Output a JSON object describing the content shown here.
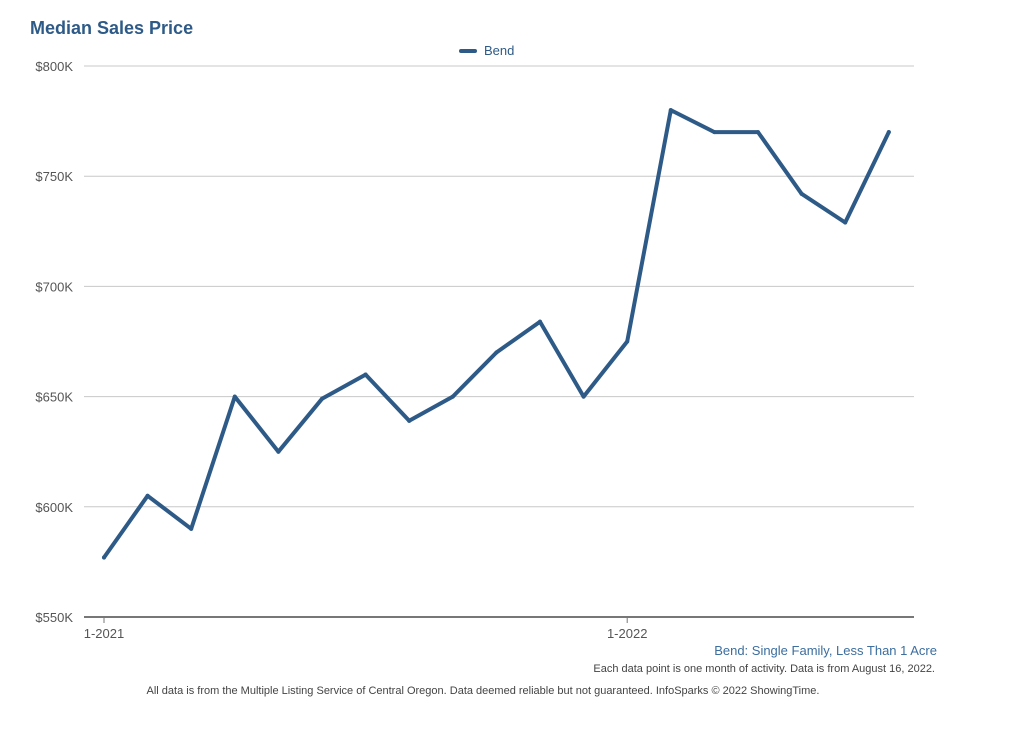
{
  "chart_data": {
    "type": "line",
    "title": "Median Sales Price",
    "x": [
      "1-2021",
      "2-2021",
      "3-2021",
      "4-2021",
      "5-2021",
      "6-2021",
      "7-2021",
      "8-2021",
      "9-2021",
      "10-2021",
      "11-2021",
      "12-2021",
      "1-2022",
      "2-2022",
      "3-2022",
      "4-2022",
      "5-2022",
      "6-2022",
      "7-2022"
    ],
    "x_tick_labels": [
      "1-2021",
      "1-2022"
    ],
    "series": [
      {
        "name": "Bend",
        "color": "#2e5a87",
        "values": [
          577000,
          605000,
          590000,
          650000,
          625000,
          649000,
          660000,
          639000,
          650000,
          670000,
          684000,
          650000,
          675000,
          780000,
          770000,
          770000,
          742000,
          729000,
          770000
        ]
      }
    ],
    "y_ticks": [
      "$550K",
      "$600K",
      "$650K",
      "$700K",
      "$750K",
      "$800K"
    ],
    "ylim": [
      550000,
      800000
    ],
    "grid": true,
    "legend_position": "top-center"
  },
  "subtitle": "Bend: Single Family, Less Than 1 Acre",
  "note": "Each data point is one month of activity. Data is from August 16, 2022.",
  "footer": "All data is from the Multiple Listing Service of Central Oregon. Data deemed reliable but not guaranteed. InfoSparks © 2022 ShowingTime."
}
